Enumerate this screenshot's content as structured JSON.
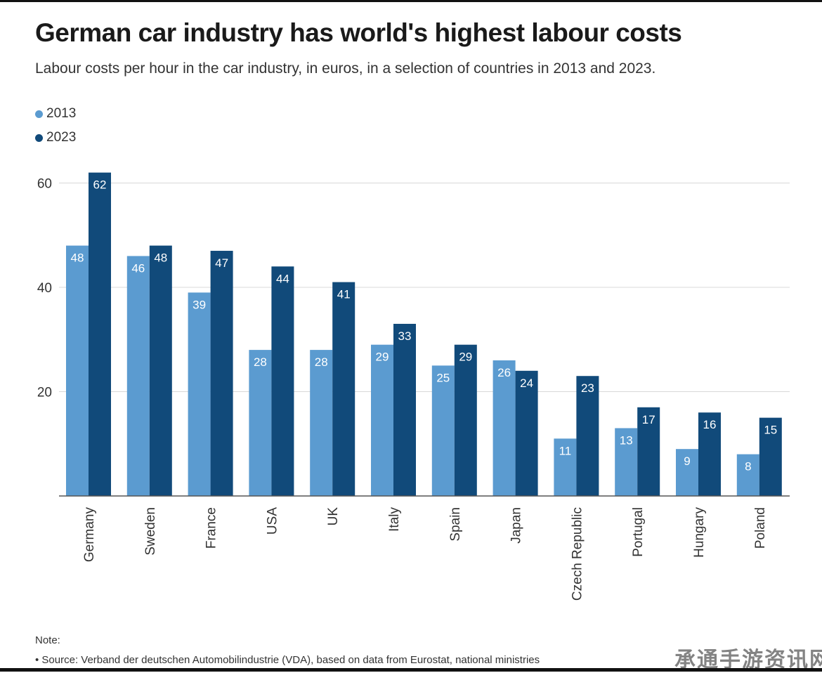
{
  "chart_data": {
    "type": "bar",
    "title": "German car industry has world's highest labour costs",
    "subtitle": "Labour costs per hour in the car industry, in euros, in a selection of countries in 2013 and 2023.",
    "categories": [
      "Germany",
      "Sweden",
      "France",
      "USA",
      "UK",
      "Italy",
      "Spain",
      "Japan",
      "Czech Republic",
      "Portugal",
      "Hungary",
      "Poland"
    ],
    "series": [
      {
        "name": "2013",
        "color": "#5b9bd0",
        "values": [
          48,
          46,
          39,
          28,
          28,
          29,
          25,
          26,
          11,
          13,
          9,
          8
        ]
      },
      {
        "name": "2023",
        "color": "#114a7a",
        "values": [
          62,
          48,
          47,
          44,
          41,
          33,
          29,
          24,
          23,
          17,
          16,
          15
        ]
      }
    ],
    "yticks": [
      20,
      40,
      60
    ],
    "ylim": [
      0,
      64
    ],
    "xlabel": "",
    "ylabel": "",
    "grid": true,
    "legend_position": "top-left",
    "data_labels": true
  },
  "note": {
    "heading": "Note:",
    "source": "• Source: Verband der deutschen Automobilindustrie (VDA), based on data from Eurostat, national ministries"
  },
  "watermark": "承通手游资讯网"
}
